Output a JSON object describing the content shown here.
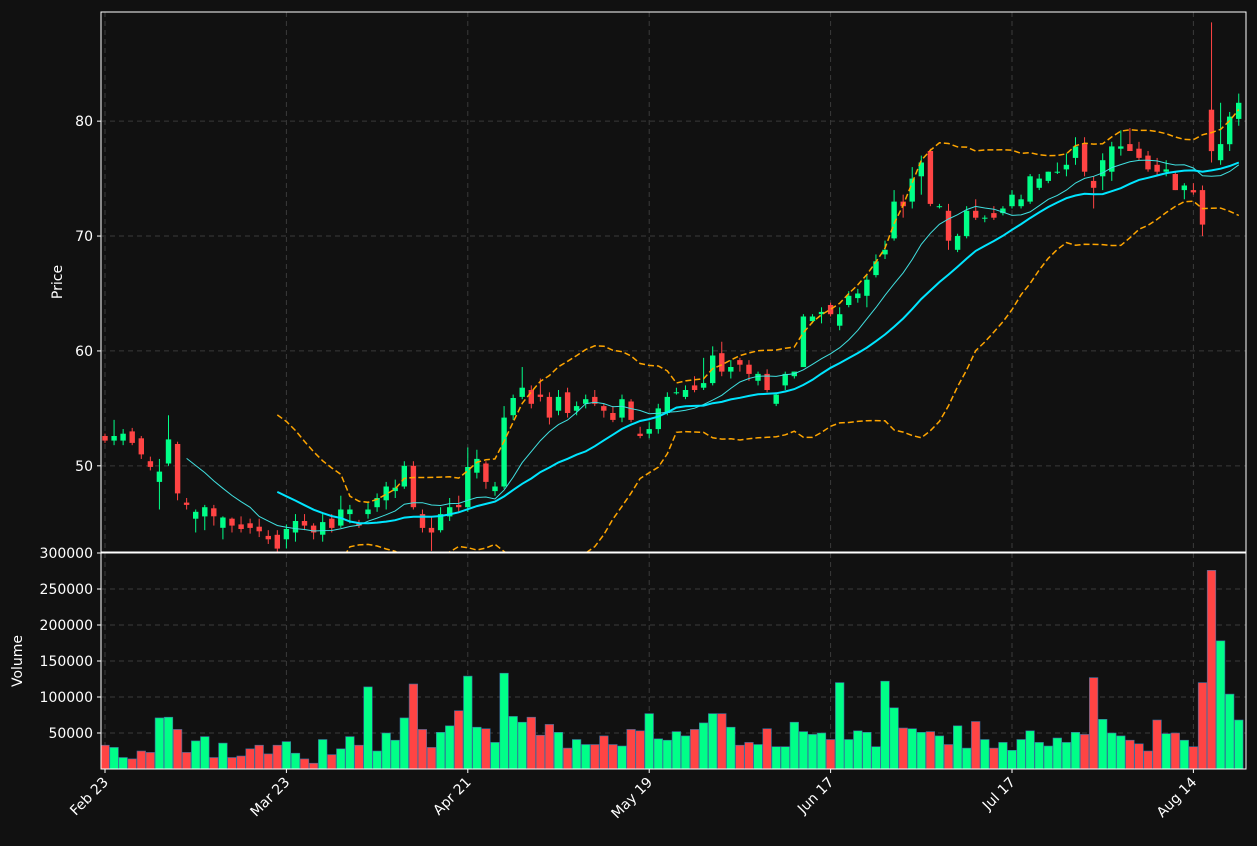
{
  "chart_data": {
    "type": "candlestick",
    "price_panel": {
      "ylabel": "Price",
      "ylim": [
        42.5,
        89.5
      ],
      "yticks": [
        50,
        60,
        70,
        80
      ],
      "grid": true
    },
    "volume_panel": {
      "ylabel": "Volume",
      "ylim": [
        0,
        300000
      ],
      "yticks": [
        50000,
        100000,
        150000,
        200000,
        250000,
        300000
      ],
      "grid": true
    },
    "x_ticks": [
      {
        "label": "Feb 23",
        "index": 0
      },
      {
        "label": "Mar 23",
        "index": 20
      },
      {
        "label": "Apr 21",
        "index": 40
      },
      {
        "label": "May 19",
        "index": 60
      },
      {
        "label": "Jun 17",
        "index": 80
      },
      {
        "label": "Jul 17",
        "index": 100
      },
      {
        "label": "Aug 14",
        "index": 120
      }
    ],
    "colors": {
      "up": "#00ff88",
      "down": "#ff4444",
      "ma_fast": "#40e0e0",
      "ma_slow": "#00e5ff",
      "bollinger": "#ffa500",
      "grid": "#3a3a3a",
      "background": "#111111",
      "text": "#ffffff"
    },
    "ma_fast_period": 10,
    "ma_slow_period": 20,
    "candles": [
      [
        52.6,
        52.8,
        52.0,
        52.2
      ],
      [
        52.2,
        54.0,
        51.8,
        52.6
      ],
      [
        52.2,
        53.2,
        51.8,
        52.8
      ],
      [
        53.0,
        53.3,
        51.8,
        52.0
      ],
      [
        52.4,
        52.6,
        50.6,
        51.0
      ],
      [
        50.4,
        50.8,
        49.6,
        49.9
      ],
      [
        48.6,
        50.6,
        46.2,
        49.5
      ],
      [
        50.2,
        54.4,
        50.0,
        52.3
      ],
      [
        51.9,
        52.1,
        47.0,
        47.6
      ],
      [
        46.8,
        47.2,
        46.2,
        46.6
      ],
      [
        45.4,
        46.2,
        44.2,
        46.0
      ],
      [
        45.6,
        46.6,
        44.4,
        46.4
      ],
      [
        46.3,
        46.6,
        44.8,
        45.6
      ],
      [
        44.6,
        45.6,
        43.6,
        45.5
      ],
      [
        45.4,
        45.5,
        44.2,
        44.8
      ],
      [
        44.9,
        45.6,
        44.2,
        44.5
      ],
      [
        45.0,
        45.4,
        44.1,
        44.6
      ],
      [
        44.7,
        45.4,
        43.8,
        44.3
      ],
      [
        43.9,
        44.4,
        43.2,
        43.6
      ],
      [
        44.0,
        44.4,
        42.4,
        42.8
      ],
      [
        43.6,
        44.9,
        42.8,
        44.5
      ],
      [
        44.2,
        45.8,
        43.4,
        45.2
      ],
      [
        45.2,
        45.8,
        44.4,
        44.8
      ],
      [
        44.8,
        45.0,
        43.6,
        44.2
      ],
      [
        44.0,
        45.9,
        43.4,
        45.1
      ],
      [
        45.4,
        45.8,
        44.2,
        44.6
      ],
      [
        44.8,
        47.4,
        44.6,
        46.2
      ],
      [
        45.8,
        46.6,
        45.0,
        46.2
      ],
      [
        45.0,
        45.3,
        44.6,
        44.8
      ],
      [
        45.8,
        46.8,
        45.4,
        46.2
      ],
      [
        46.4,
        47.6,
        46.0,
        47.2
      ],
      [
        47.0,
        48.6,
        46.2,
        48.2
      ],
      [
        47.8,
        48.8,
        47.2,
        48.1
      ],
      [
        48.2,
        50.4,
        48.0,
        50.0
      ],
      [
        50.0,
        50.4,
        46.2,
        46.4
      ],
      [
        45.8,
        46.2,
        44.2,
        44.6
      ],
      [
        44.6,
        45.6,
        42.6,
        44.2
      ],
      [
        44.4,
        46.4,
        44.2,
        45.8
      ],
      [
        45.6,
        47.2,
        45.2,
        46.4
      ],
      [
        46.6,
        47.4,
        46.0,
        46.4
      ],
      [
        46.4,
        51.6,
        46.0,
        49.9
      ],
      [
        49.4,
        51.4,
        48.9,
        50.6
      ],
      [
        50.2,
        50.4,
        48.0,
        48.6
      ],
      [
        47.8,
        48.6,
        47.4,
        48.2
      ],
      [
        48.2,
        55.2,
        48.0,
        54.2
      ],
      [
        54.4,
        56.2,
        54.0,
        55.9
      ],
      [
        56.0,
        58.6,
        55.8,
        56.8
      ],
      [
        56.6,
        57.0,
        55.0,
        55.4
      ],
      [
        56.2,
        57.6,
        55.6,
        56.0
      ],
      [
        56.0,
        56.4,
        53.6,
        54.2
      ],
      [
        54.8,
        56.6,
        54.4,
        56.0
      ],
      [
        56.4,
        56.8,
        54.2,
        54.6
      ],
      [
        54.8,
        55.6,
        54.4,
        55.2
      ],
      [
        55.4,
        56.2,
        55.0,
        55.8
      ],
      [
        56.0,
        56.6,
        55.2,
        55.4
      ],
      [
        55.2,
        55.4,
        54.2,
        54.8
      ],
      [
        54.6,
        55.2,
        53.8,
        54.0
      ],
      [
        54.2,
        56.2,
        53.8,
        55.8
      ],
      [
        55.6,
        55.8,
        53.8,
        54.0
      ],
      [
        52.8,
        53.4,
        52.4,
        52.6
      ],
      [
        52.8,
        53.8,
        52.4,
        53.2
      ],
      [
        53.2,
        55.4,
        52.8,
        55.0
      ],
      [
        54.6,
        56.4,
        54.4,
        56.0
      ],
      [
        56.4,
        56.8,
        56.2,
        56.4
      ],
      [
        56.0,
        57.0,
        55.8,
        56.6
      ],
      [
        57.0,
        57.8,
        56.4,
        56.6
      ],
      [
        56.8,
        59.4,
        56.6,
        57.2
      ],
      [
        57.2,
        60.4,
        57.0,
        59.6
      ],
      [
        59.8,
        60.8,
        57.8,
        58.2
      ],
      [
        58.2,
        59.2,
        57.6,
        58.6
      ],
      [
        59.2,
        59.4,
        58.2,
        58.8
      ],
      [
        58.8,
        59.2,
        57.4,
        58.0
      ],
      [
        57.4,
        58.2,
        57.0,
        58.0
      ],
      [
        58.0,
        58.4,
        56.4,
        56.6
      ],
      [
        55.4,
        56.4,
        55.2,
        56.2
      ],
      [
        57.0,
        58.2,
        56.6,
        58.0
      ],
      [
        57.8,
        58.2,
        57.6,
        58.2
      ],
      [
        58.6,
        63.2,
        58.6,
        63.0
      ],
      [
        62.6,
        63.2,
        62.4,
        63.0
      ],
      [
        63.2,
        63.8,
        62.4,
        63.4
      ],
      [
        64.0,
        64.2,
        63.0,
        63.2
      ],
      [
        62.2,
        63.8,
        61.8,
        63.2
      ],
      [
        64.0,
        65.2,
        63.8,
        64.8
      ],
      [
        64.6,
        65.4,
        64.2,
        65.0
      ],
      [
        64.8,
        66.6,
        63.8,
        66.2
      ],
      [
        66.6,
        68.4,
        66.4,
        67.8
      ],
      [
        68.4,
        69.6,
        68.0,
        68.8
      ],
      [
        69.8,
        74.0,
        69.6,
        73.0
      ],
      [
        73.0,
        73.6,
        71.6,
        72.6
      ],
      [
        73.0,
        76.0,
        72.4,
        75.0
      ],
      [
        75.2,
        77.0,
        73.6,
        76.4
      ],
      [
        77.4,
        77.6,
        72.6,
        72.8
      ],
      [
        72.6,
        72.8,
        72.4,
        72.6
      ],
      [
        72.2,
        72.8,
        68.8,
        69.6
      ],
      [
        68.8,
        70.2,
        68.6,
        70.0
      ],
      [
        70.0,
        72.6,
        69.8,
        72.2
      ],
      [
        72.2,
        73.2,
        71.4,
        71.6
      ],
      [
        71.6,
        71.8,
        71.2,
        71.6
      ],
      [
        72.0,
        72.6,
        71.4,
        71.6
      ],
      [
        72.0,
        72.6,
        71.8,
        72.4
      ],
      [
        72.6,
        74.0,
        72.4,
        73.6
      ],
      [
        72.6,
        73.6,
        72.4,
        73.2
      ],
      [
        73.0,
        75.4,
        72.8,
        75.2
      ],
      [
        74.2,
        75.4,
        74.0,
        75.0
      ],
      [
        74.8,
        75.6,
        74.6,
        75.6
      ],
      [
        75.6,
        76.4,
        75.4,
        75.6
      ],
      [
        75.8,
        77.2,
        75.2,
        76.2
      ],
      [
        76.8,
        78.6,
        76.2,
        77.8
      ],
      [
        78.0,
        78.6,
        75.2,
        75.6
      ],
      [
        74.8,
        75.2,
        72.4,
        74.2
      ],
      [
        75.2,
        77.2,
        74.0,
        76.6
      ],
      [
        75.6,
        78.2,
        74.8,
        77.8
      ],
      [
        77.6,
        79.2,
        77.0,
        77.8
      ],
      [
        78.0,
        79.4,
        77.6,
        77.4
      ],
      [
        77.6,
        78.2,
        76.6,
        76.8
      ],
      [
        77.0,
        77.4,
        75.6,
        75.8
      ],
      [
        76.2,
        76.8,
        75.2,
        75.6
      ],
      [
        75.6,
        76.6,
        75.2,
        75.8
      ],
      [
        75.4,
        75.6,
        74.0,
        74.0
      ],
      [
        74.0,
        74.6,
        73.2,
        74.4
      ],
      [
        74.0,
        74.6,
        73.6,
        73.8
      ],
      [
        74.0,
        74.4,
        70.0,
        71.0
      ],
      [
        81.0,
        88.6,
        76.4,
        77.4
      ],
      [
        76.6,
        81.6,
        76.2,
        78.0
      ],
      [
        78.0,
        80.8,
        77.4,
        80.4
      ],
      [
        80.2,
        82.4,
        79.6,
        81.6
      ]
    ],
    "volumes": [
      33000,
      30000,
      16000,
      14000,
      25000,
      23000,
      71000,
      72000,
      55000,
      23000,
      39000,
      45000,
      16000,
      36000,
      16000,
      18000,
      28000,
      33000,
      21000,
      33000,
      38000,
      22000,
      14000,
      8000,
      41000,
      20000,
      28000,
      45000,
      33000,
      114000,
      25000,
      50000,
      40000,
      71000,
      118000,
      55000,
      30000,
      51000,
      60000,
      81000,
      129000,
      58000,
      56000,
      37000,
      133000,
      73000,
      65000,
      72000,
      47000,
      62000,
      51000,
      29000,
      41000,
      34000,
      34000,
      46000,
      34000,
      32000,
      55000,
      53000,
      77000,
      42000,
      40000,
      52000,
      46000,
      55000,
      64000,
      77000,
      77000,
      58000,
      33000,
      37000,
      34000,
      56000,
      31000,
      31000,
      65000,
      52000,
      48000,
      50000,
      41000,
      120000,
      41000,
      53000,
      51000,
      31000,
      122000,
      85000,
      57000,
      56000,
      51000,
      52000,
      46000,
      34000,
      60000,
      29000,
      66000,
      41000,
      29000,
      37000,
      26000,
      41000,
      53000,
      37000,
      32000,
      43000,
      37000,
      51000,
      48000,
      127000,
      69000,
      50000,
      46000,
      40000,
      35000,
      25000,
      68000,
      49000,
      50000,
      40000,
      31000,
      120000,
      276000,
      178000,
      104000,
      68000
    ]
  }
}
